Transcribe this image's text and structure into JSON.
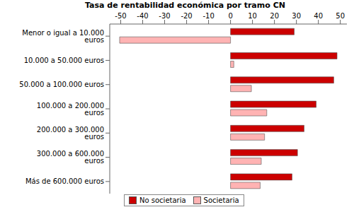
{
  "chart_data": {
    "type": "bar",
    "title": "Tasa de rentabilidad económica por tramo CN",
    "orientation": "horizontal",
    "categories": [
      "Menor o igual a 10.000 euros",
      "10.000 a 50.000 euros",
      "50.000 a 100.000 euros",
      "100.000 a 200.000 euros",
      "200.000 a 300.000 euros",
      "300.000 a 600.000 euros",
      "Más de 600.000 euros"
    ],
    "series": [
      {
        "name": "No societaria",
        "color": "#cc0000",
        "values": [
          29,
          48.5,
          47,
          39,
          33.5,
          30.5,
          28
        ]
      },
      {
        "name": "Societaria",
        "color": "#ffb3b3",
        "values": [
          -50.5,
          1.5,
          9.5,
          16.5,
          15.5,
          14,
          13.5
        ]
      }
    ],
    "xlim": [
      -55,
      53
    ],
    "xticks": [
      -50,
      -40,
      -30,
      -20,
      -10,
      0,
      10,
      20,
      30,
      40,
      50
    ],
    "legend": "bottom",
    "grid": false
  }
}
